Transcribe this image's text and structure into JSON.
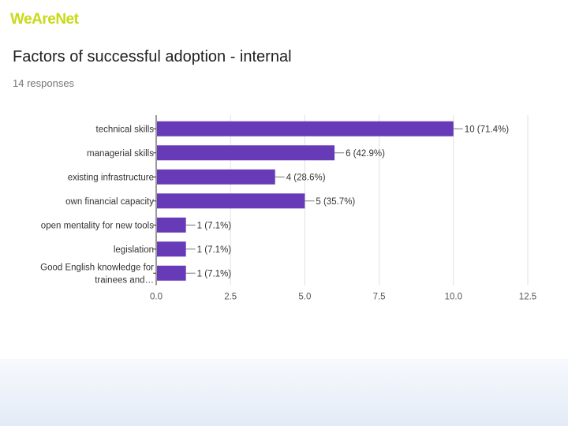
{
  "brand": {
    "name": "WeAreNet"
  },
  "header": {
    "title": "Factors of successful adoption - internal",
    "responses": "14 responses"
  },
  "colors": {
    "bar": "#673ab7",
    "brand": "#c8d916",
    "gridline": "#e0e0e0",
    "axis": "#333333"
  },
  "chart_data": {
    "type": "bar",
    "orientation": "horizontal",
    "title": "Factors of successful adoption - internal",
    "subtitle": "14 responses",
    "categories": [
      [
        "technical skills"
      ],
      [
        "managerial skills"
      ],
      [
        "existing infrastructure"
      ],
      [
        "own financial capacity"
      ],
      [
        "open mentality for new tools"
      ],
      [
        "legislation"
      ],
      [
        "Good English knowledge for",
        "trainees and…"
      ]
    ],
    "values": [
      10,
      6,
      4,
      5,
      1,
      1,
      1
    ],
    "data_labels": [
      "10 (71.4%)",
      "6 (42.9%)",
      "4 (28.6%)",
      "5 (35.7%)",
      "1 (7.1%)",
      "1 (7.1%)",
      "1 (7.1%)"
    ],
    "xlim": [
      0,
      12.5
    ],
    "xticks": [
      0,
      2.5,
      5,
      7.5,
      10,
      12.5
    ],
    "xtick_labels": [
      "0.0",
      "2.5",
      "5.0",
      "7.5",
      "10.0",
      "12.5"
    ],
    "grid": true,
    "legend": "none"
  }
}
